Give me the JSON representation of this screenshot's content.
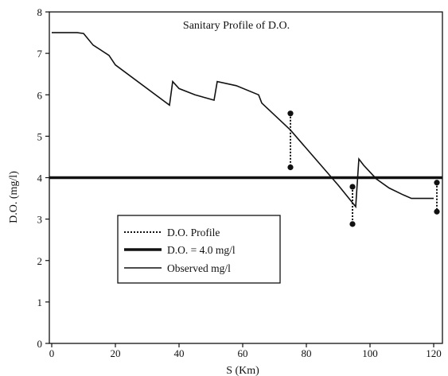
{
  "chart_data": {
    "type": "line",
    "title": "Sanitary Profile of D.O.",
    "xlabel": "S (Km)",
    "ylabel": "D.O. (mg/l)",
    "xlim": [
      0,
      120
    ],
    "ylim": [
      0,
      8
    ],
    "xticks": [
      "0",
      "20",
      "40",
      "60",
      "80",
      "100",
      "120"
    ],
    "yticks": [
      "0",
      "1",
      "2",
      "3",
      "4",
      "5",
      "6",
      "7",
      "8"
    ],
    "grid": false,
    "legend_position": "bottom-left",
    "series": [
      {
        "name": "D.O. Profile",
        "style": "dotted",
        "color": "#111111",
        "segments": [
          [
            [
              75,
              5.55
            ],
            [
              75,
              4.25
            ]
          ],
          [
            [
              94.5,
              3.78
            ],
            [
              94.5,
              2.88
            ]
          ],
          [
            [
              121,
              3.88
            ],
            [
              121,
              3.18
            ]
          ]
        ]
      },
      {
        "name": "D.O. = 4.0 mg/l",
        "style": "thick",
        "color": "#111111",
        "x": [
          0,
          123
        ],
        "y": [
          4.0,
          4.0
        ]
      },
      {
        "name": "Observed mg/l",
        "style": "solid",
        "color": "#111111",
        "x": [
          0,
          8,
          10,
          13,
          18,
          20,
          37,
          38,
          40,
          45,
          51,
          52,
          58,
          65,
          66,
          75,
          90,
          95.5,
          96.5,
          98,
          102,
          106,
          110,
          113,
          116,
          120
        ],
        "y": [
          7.5,
          7.5,
          7.48,
          7.2,
          6.95,
          6.72,
          5.75,
          6.32,
          6.15,
          6.0,
          5.87,
          6.32,
          6.22,
          6.0,
          5.8,
          5.15,
          3.82,
          3.3,
          4.45,
          4.3,
          3.97,
          3.75,
          3.6,
          3.5,
          3.5,
          3.5
        ]
      }
    ]
  }
}
